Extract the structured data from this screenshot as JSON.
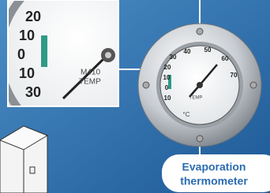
{
  "zoom_dial": {
    "labels": [
      "20",
      "10",
      "0",
      "10",
      "30"
    ],
    "brand": "M410",
    "unit": "TEMP"
  },
  "main_dial": {
    "labels": [
      "30",
      "20",
      "10",
      "0",
      "10",
      "40",
      "50",
      "60",
      "70"
    ],
    "unit": "TEMP",
    "symbol": "°C"
  },
  "callout": {
    "line1": "Evaporation",
    "line2": "thermometer"
  }
}
